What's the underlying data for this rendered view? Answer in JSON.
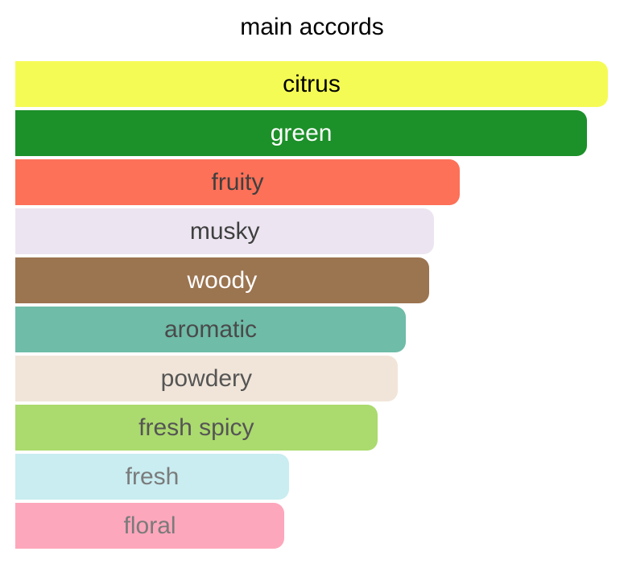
{
  "title": "main accords",
  "chart_data": {
    "type": "bar",
    "orientation": "horizontal",
    "title": "main accords",
    "axes_visible": false,
    "grid": false,
    "legend": "none",
    "background": "#FFFFFF",
    "categories": [
      "citrus",
      "green",
      "fruity",
      "musky",
      "woody",
      "aromatic",
      "powdery",
      "fresh spicy",
      "fresh",
      "floral"
    ],
    "values": [
      100,
      96.5,
      75.0,
      70.7,
      69.8,
      65.9,
      64.5,
      61.1,
      46.2,
      45.4
    ],
    "value_unit": "percent of widest bar",
    "bars": [
      {
        "label": "citrus",
        "value_pct": 100,
        "color": "#F5FB55",
        "text_color": "#000000"
      },
      {
        "label": "green",
        "value_pct": 96.5,
        "color": "#1C9029",
        "text_color": "#FFFFFF"
      },
      {
        "label": "fruity",
        "value_pct": 75.0,
        "color": "#FC7158",
        "text_color": "#3F3F3F"
      },
      {
        "label": "musky",
        "value_pct": 70.7,
        "color": "#ECE5F1",
        "text_color": "#3F3F3F"
      },
      {
        "label": "woody",
        "value_pct": 69.8,
        "color": "#9B7450",
        "text_color": "#FFFFFF"
      },
      {
        "label": "aromatic",
        "value_pct": 65.9,
        "color": "#6FBCA8",
        "text_color": "#4A4A4A"
      },
      {
        "label": "powdery",
        "value_pct": 64.5,
        "color": "#F1E5D9",
        "text_color": "#555555"
      },
      {
        "label": "fresh spicy",
        "value_pct": 61.1,
        "color": "#ABDA6E",
        "text_color": "#555555"
      },
      {
        "label": "fresh",
        "value_pct": 46.2,
        "color": "#C9EDF1",
        "text_color": "#7B7B7B"
      },
      {
        "label": "floral",
        "value_pct": 45.4,
        "color": "#FDA7BC",
        "text_color": "#7B7B7B"
      }
    ]
  }
}
